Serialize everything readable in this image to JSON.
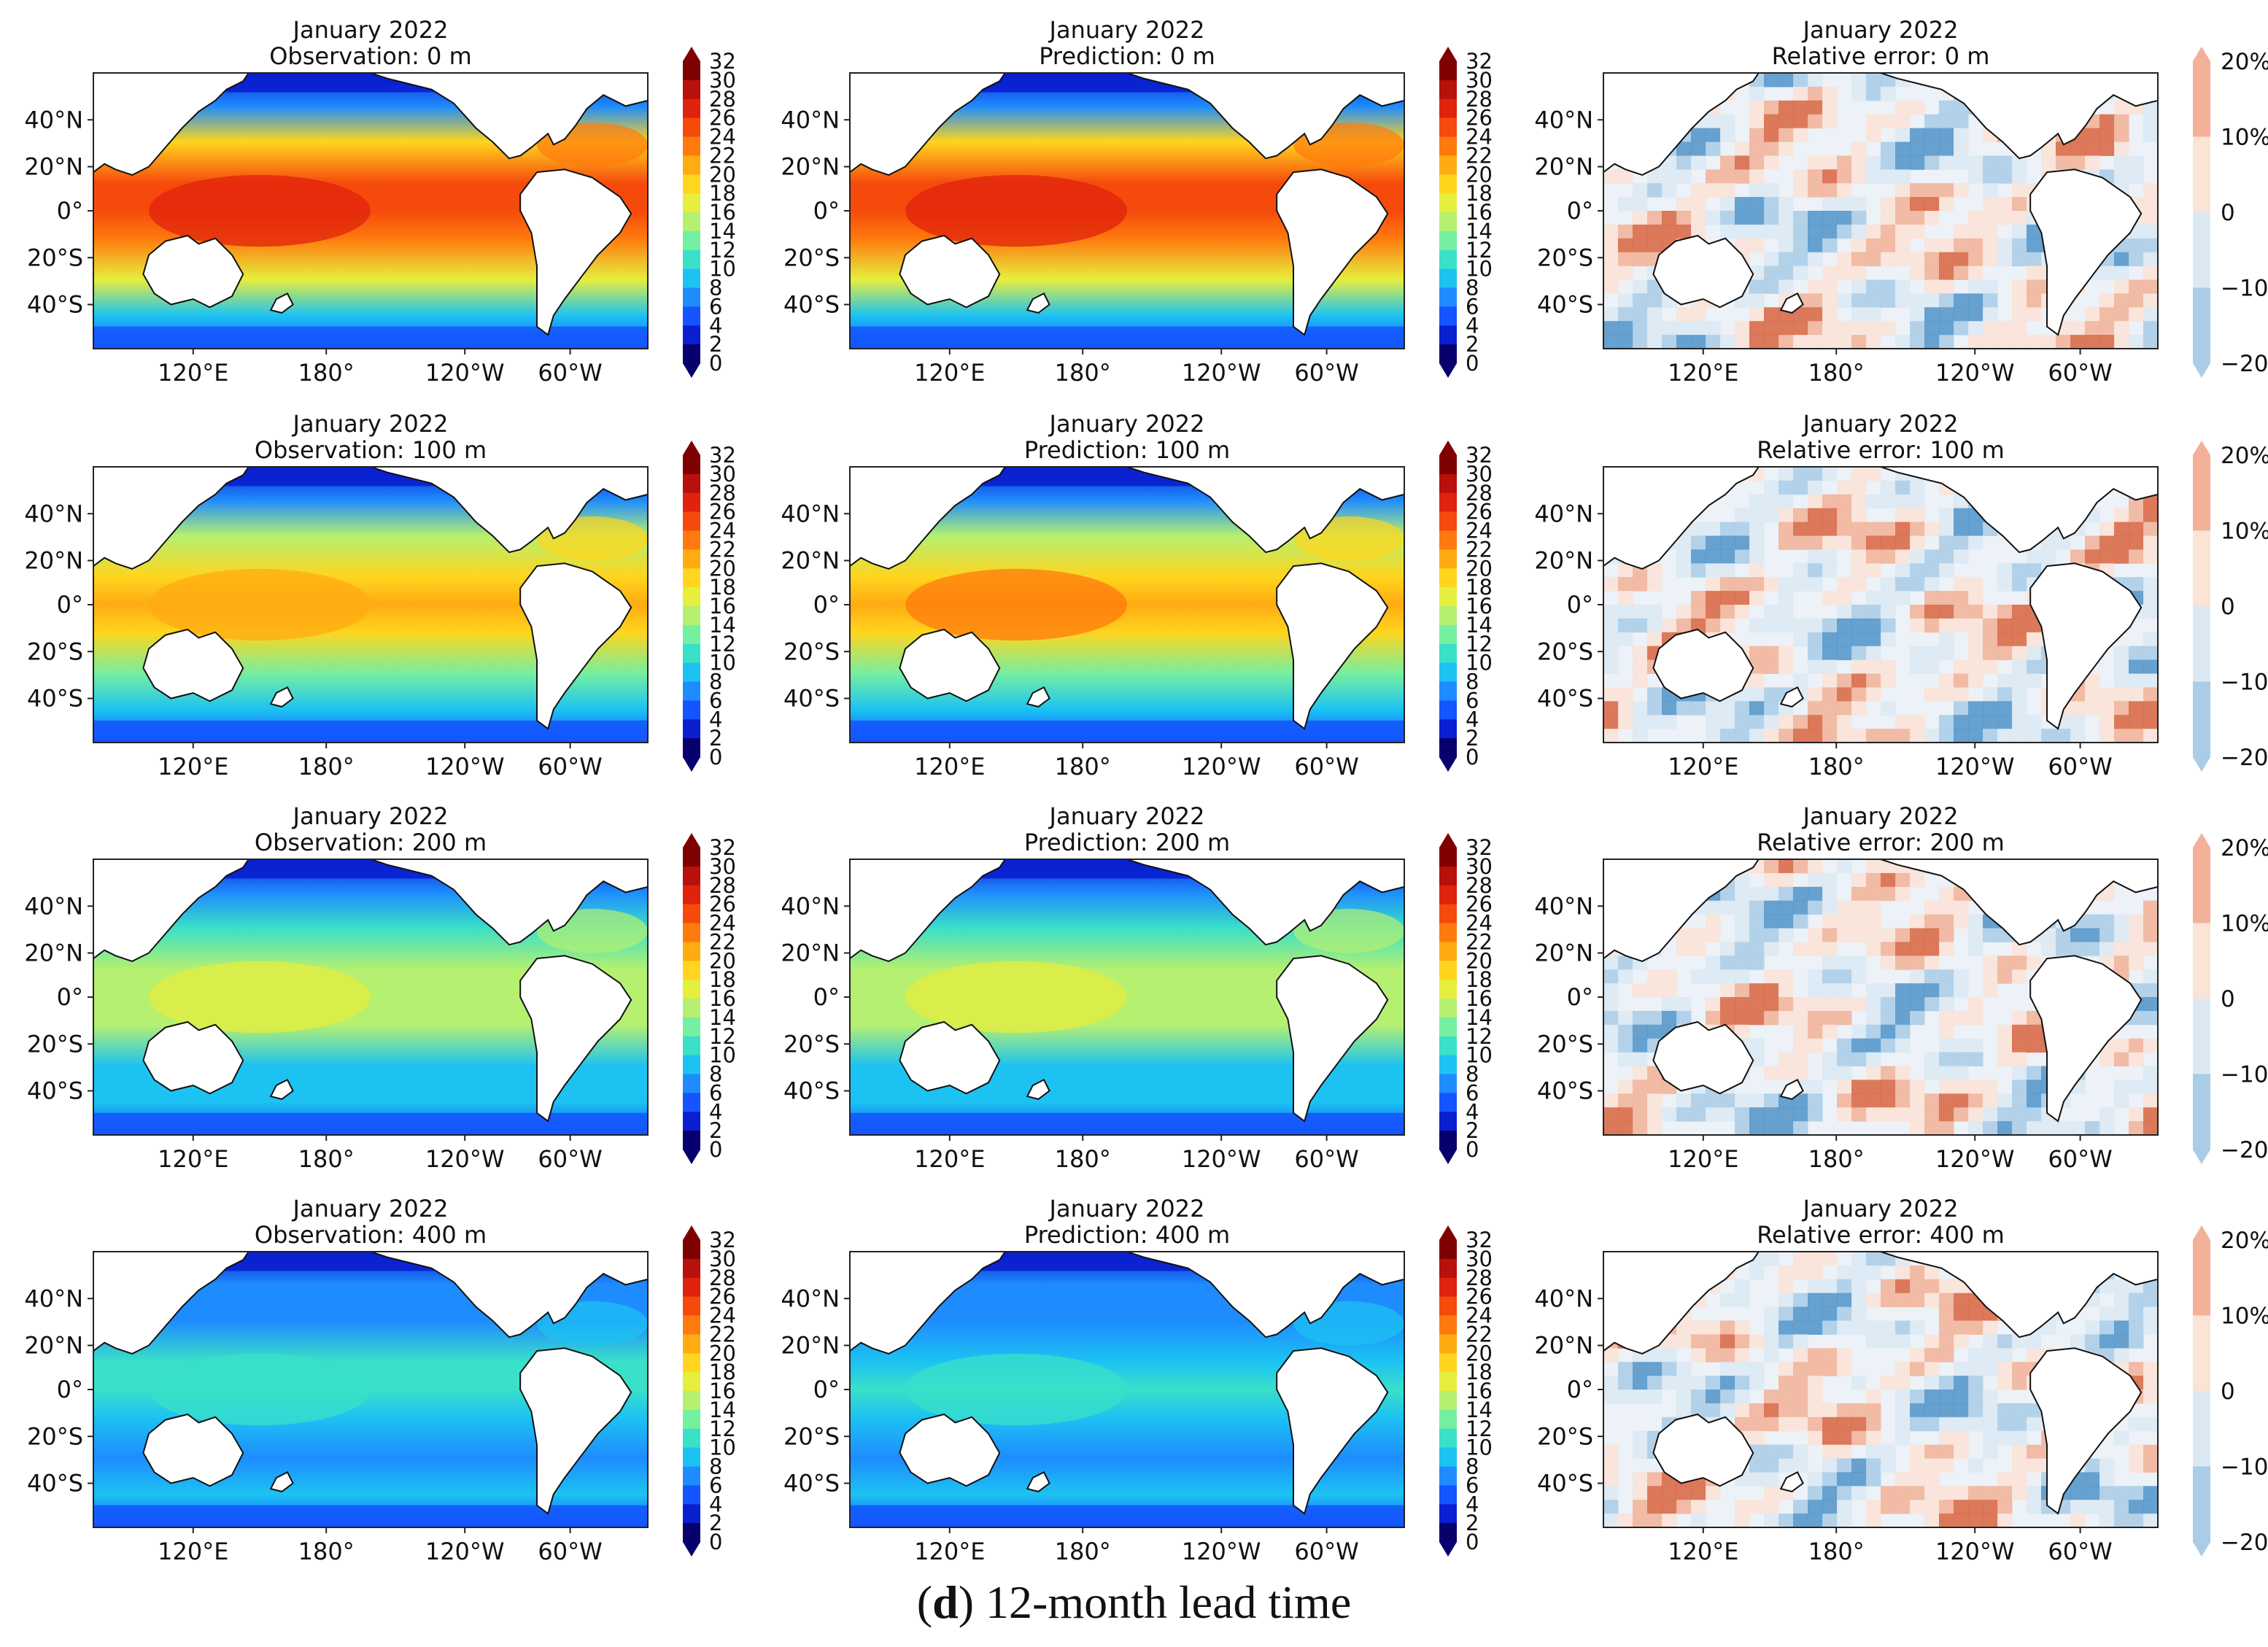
{
  "figure": {
    "caption_letter": "d",
    "caption_text": " 12-month lead time",
    "column_labels": [
      "Observation",
      "Prediction",
      "Relative error"
    ],
    "month_label": "January 2022",
    "depth_unit": "m",
    "depths": [
      0,
      100,
      200,
      400
    ],
    "panel_titles": [
      [
        "Observation: 0 m",
        "Prediction: 0 m",
        "Relative error: 0 m"
      ],
      [
        "Observation: 100 m",
        "Prediction: 100 m",
        "Relative error: 100 m"
      ],
      [
        "Observation: 200 m",
        "Prediction: 200 m",
        "Relative error: 200 m"
      ],
      [
        "Observation: 400 m",
        "Prediction: 400 m",
        "Relative error: 400 m"
      ]
    ],
    "lat_ticks": [
      "40°N",
      "20°N",
      "0°",
      "20°S",
      "40°S"
    ],
    "lon_ticks": [
      "120°E",
      "180°",
      "120°W",
      "60°W"
    ],
    "temp_colorbar_ticks": [
      "32",
      "30",
      "28",
      "26",
      "24",
      "22",
      "20",
      "18",
      "16",
      "14",
      "12",
      "10",
      "8",
      "6",
      "4",
      "2",
      "0"
    ],
    "error_colorbar_ticks": [
      "20%",
      "10%",
      "0",
      "−10%",
      "−20%"
    ]
  },
  "colors": {
    "temp_scale": [
      "#08006d",
      "#0a1fd0",
      "#1455ff",
      "#1e8cff",
      "#1cc3f2",
      "#3ae0c8",
      "#75efa0",
      "#b5f070",
      "#e6ee3e",
      "#ffd51e",
      "#ffab12",
      "#ff7a0e",
      "#f54a0c",
      "#e0230c",
      "#b8100a",
      "#7f0000"
    ],
    "error_scale": [
      "#4f93c9",
      "#a9cde6",
      "#dce9f3",
      "#fbe3d6",
      "#f2b198",
      "#d9643f"
    ],
    "land": "#ffffff",
    "coast": "#111111"
  },
  "chart_data": {
    "type": "heatmap",
    "variable": "temperature (colour-filled maps)",
    "temp_range": [
      0,
      32
    ],
    "error_range_percent": [
      -20,
      20
    ],
    "rows": [
      {
        "depth_m": 0,
        "obs_mean_level": 0.78,
        "pred_mean_level": 0.79
      },
      {
        "depth_m": 100,
        "obs_mean_level": 0.62,
        "pred_mean_level": 0.63
      },
      {
        "depth_m": 200,
        "obs_mean_level": 0.46,
        "pred_mean_level": 0.46
      },
      {
        "depth_m": 400,
        "obs_mean_level": 0.3,
        "pred_mean_level": 0.29
      }
    ]
  }
}
